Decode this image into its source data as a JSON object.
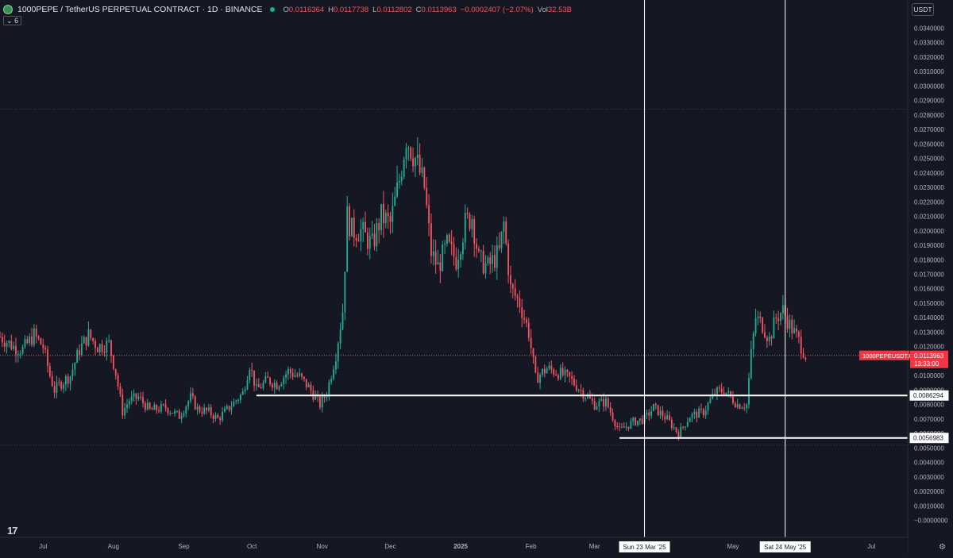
{
  "header": {
    "symbol_title": "1000PEPE / TetherUS PERPETUAL CONTRACT · 1D · BINANCE",
    "ohlc": [
      {
        "key": "O",
        "value": "0.0116364"
      },
      {
        "key": "H",
        "value": "0.0117738"
      },
      {
        "key": "L",
        "value": "0.0112802"
      },
      {
        "key": "C",
        "value": "0.0113963"
      },
      {
        "key": "",
        "value": "−0.0002407 (−2.07%)"
      },
      {
        "key": "Vol",
        "value": "32.53B"
      }
    ],
    "indicator_count": "6",
    "currency": "USDT"
  },
  "colors": {
    "background": "#151823",
    "up": "#22ab94",
    "down": "#f7525f",
    "axis_text": "#b2b5be",
    "price_label": "#f23645"
  },
  "icons": {
    "logo": "pepe-coin-logo",
    "settings": "gear-icon",
    "tradingview": "tradingview-logo"
  },
  "chart_data": {
    "type": "candlestick",
    "symbol": "1000PEPEUSDT.P",
    "interval": "1D",
    "ylim": [
      -0.0004,
      0.0344
    ],
    "y_ticks": [
      "0.0340000",
      "0.0330000",
      "0.0320000",
      "0.0310000",
      "0.0300000",
      "0.0290000",
      "0.0280000",
      "0.0270000",
      "0.0260000",
      "0.0250000",
      "0.0240000",
      "0.0230000",
      "0.0220000",
      "0.0210000",
      "0.0200000",
      "0.0190000",
      "0.0180000",
      "0.0170000",
      "0.0160000",
      "0.0150000",
      "0.0140000",
      "0.0130000",
      "0.0120000",
      "0.0110000",
      "0.0100000",
      "0.0090000",
      "0.0080000",
      "0.0070000",
      "0.0060000",
      "0.0050000",
      "0.0040000",
      "0.0030000",
      "0.0020000",
      "0.0010000",
      "−0.0000000"
    ],
    "x_ticks": [
      {
        "label": "Jul",
        "date": "2024-07-01"
      },
      {
        "label": "Aug",
        "date": "2024-08-01"
      },
      {
        "label": "Sep",
        "date": "2024-09-01"
      },
      {
        "label": "Oct",
        "date": "2024-10-01"
      },
      {
        "label": "Nov",
        "date": "2024-11-01"
      },
      {
        "label": "Dec",
        "date": "2024-12-01"
      },
      {
        "label": "2025",
        "date": "2025-01-01"
      },
      {
        "label": "Feb",
        "date": "2025-02-01"
      },
      {
        "label": "Mar",
        "date": "2025-03-01"
      },
      {
        "label": "May",
        "date": "2025-05-01"
      },
      {
        "label": "Jul",
        "date": "2025-07-01"
      }
    ],
    "x_range": [
      "2024-06-12",
      "2025-07-17"
    ],
    "closes": [
      {
        "date": "2024-06-12",
        "close": 0.0127
      },
      {
        "date": "2024-06-18",
        "close": 0.012
      },
      {
        "date": "2024-06-22",
        "close": 0.0118
      },
      {
        "date": "2024-06-27",
        "close": 0.0128
      },
      {
        "date": "2024-07-01",
        "close": 0.012
      },
      {
        "date": "2024-07-04",
        "close": 0.01
      },
      {
        "date": "2024-07-06",
        "close": 0.009
      },
      {
        "date": "2024-07-09",
        "close": 0.0095
      },
      {
        "date": "2024-07-13",
        "close": 0.01
      },
      {
        "date": "2024-07-17",
        "close": 0.0118
      },
      {
        "date": "2024-07-21",
        "close": 0.0128
      },
      {
        "date": "2024-07-25",
        "close": 0.012
      },
      {
        "date": "2024-07-30",
        "close": 0.0122
      },
      {
        "date": "2024-08-02",
        "close": 0.0102
      },
      {
        "date": "2024-08-05",
        "close": 0.0075
      },
      {
        "date": "2024-08-08",
        "close": 0.0083
      },
      {
        "date": "2024-08-12",
        "close": 0.0085
      },
      {
        "date": "2024-08-17",
        "close": 0.0076
      },
      {
        "date": "2024-08-24",
        "close": 0.0078
      },
      {
        "date": "2024-08-30",
        "close": 0.0072
      },
      {
        "date": "2024-09-04",
        "close": 0.0085
      },
      {
        "date": "2024-09-07",
        "close": 0.0077
      },
      {
        "date": "2024-09-12",
        "close": 0.0075
      },
      {
        "date": "2024-09-16",
        "close": 0.007
      },
      {
        "date": "2024-09-21",
        "close": 0.0078
      },
      {
        "date": "2024-09-27",
        "close": 0.0088
      },
      {
        "date": "2024-09-30",
        "close": 0.0108
      },
      {
        "date": "2024-10-03",
        "close": 0.009
      },
      {
        "date": "2024-10-08",
        "close": 0.0097
      },
      {
        "date": "2024-10-12",
        "close": 0.0094
      },
      {
        "date": "2024-10-17",
        "close": 0.0103
      },
      {
        "date": "2024-10-22",
        "close": 0.0099
      },
      {
        "date": "2024-10-26",
        "close": 0.0092
      },
      {
        "date": "2024-10-31",
        "close": 0.008
      },
      {
        "date": "2024-11-03",
        "close": 0.0088
      },
      {
        "date": "2024-11-07",
        "close": 0.0115
      },
      {
        "date": "2024-11-10",
        "close": 0.0145
      },
      {
        "date": "2024-11-12",
        "close": 0.021
      },
      {
        "date": "2024-11-14",
        "close": 0.02
      },
      {
        "date": "2024-11-18",
        "close": 0.02
      },
      {
        "date": "2024-11-23",
        "close": 0.019
      },
      {
        "date": "2024-11-27",
        "close": 0.021
      },
      {
        "date": "2024-12-01",
        "close": 0.0205
      },
      {
        "date": "2024-12-05",
        "close": 0.0235
      },
      {
        "date": "2024-12-08",
        "close": 0.0265
      },
      {
        "date": "2024-12-12",
        "close": 0.025
      },
      {
        "date": "2024-12-16",
        "close": 0.023
      },
      {
        "date": "2024-12-19",
        "close": 0.0185
      },
      {
        "date": "2024-12-22",
        "close": 0.0175
      },
      {
        "date": "2024-12-26",
        "close": 0.019
      },
      {
        "date": "2024-12-30",
        "close": 0.018
      },
      {
        "date": "2025-01-03",
        "close": 0.0205
      },
      {
        "date": "2025-01-06",
        "close": 0.021
      },
      {
        "date": "2025-01-09",
        "close": 0.018
      },
      {
        "date": "2025-01-13",
        "close": 0.0175
      },
      {
        "date": "2025-01-18",
        "close": 0.0185
      },
      {
        "date": "2025-01-20",
        "close": 0.0205
      },
      {
        "date": "2025-01-23",
        "close": 0.016
      },
      {
        "date": "2025-01-27",
        "close": 0.015
      },
      {
        "date": "2025-01-31",
        "close": 0.013
      },
      {
        "date": "2025-02-03",
        "close": 0.0098
      },
      {
        "date": "2025-02-08",
        "close": 0.0105
      },
      {
        "date": "2025-02-13",
        "close": 0.0102
      },
      {
        "date": "2025-02-18",
        "close": 0.0098
      },
      {
        "date": "2025-02-24",
        "close": 0.0088
      },
      {
        "date": "2025-03-01",
        "close": 0.008
      },
      {
        "date": "2025-03-06",
        "close": 0.0082
      },
      {
        "date": "2025-03-10",
        "close": 0.0068
      },
      {
        "date": "2025-03-12",
        "close": 0.0062
      },
      {
        "date": "2025-03-18",
        "close": 0.0068
      },
      {
        "date": "2025-03-23",
        "close": 0.007
      },
      {
        "date": "2025-03-27",
        "close": 0.0078
      },
      {
        "date": "2025-04-02",
        "close": 0.007
      },
      {
        "date": "2025-04-07",
        "close": 0.006
      },
      {
        "date": "2025-04-12",
        "close": 0.0072
      },
      {
        "date": "2025-04-18",
        "close": 0.0075
      },
      {
        "date": "2025-04-23",
        "close": 0.0088
      },
      {
        "date": "2025-04-27",
        "close": 0.009
      },
      {
        "date": "2025-05-03",
        "close": 0.008
      },
      {
        "date": "2025-05-07",
        "close": 0.008
      },
      {
        "date": "2025-05-09",
        "close": 0.0115
      },
      {
        "date": "2025-05-11",
        "close": 0.014
      },
      {
        "date": "2025-05-14",
        "close": 0.0135
      },
      {
        "date": "2025-05-17",
        "close": 0.0125
      },
      {
        "date": "2025-05-20",
        "close": 0.014
      },
      {
        "date": "2025-05-23",
        "close": 0.0145
      },
      {
        "date": "2025-05-26",
        "close": 0.0135
      },
      {
        "date": "2025-05-30",
        "close": 0.0124
      },
      {
        "date": "2025-06-02",
        "close": 0.0114
      }
    ],
    "horizontal_levels": [
      {
        "value": 0.0086294,
        "label": "0.0086294"
      },
      {
        "value": 0.0056983,
        "label": "0.0056983"
      }
    ],
    "reference_levels": [
      0.0284,
      0.0052
    ],
    "last_price": {
      "value": 0.0113963,
      "symbol_label": "1000PEPEUSDT.P",
      "price_label": "0.0113963",
      "countdown": "13:33:00"
    },
    "vertical_markers": [
      {
        "date": "2025-03-23",
        "label": "Sun 23 Mar '25"
      },
      {
        "date": "2025-05-24",
        "label": "Sat 24 May '25"
      }
    ]
  }
}
